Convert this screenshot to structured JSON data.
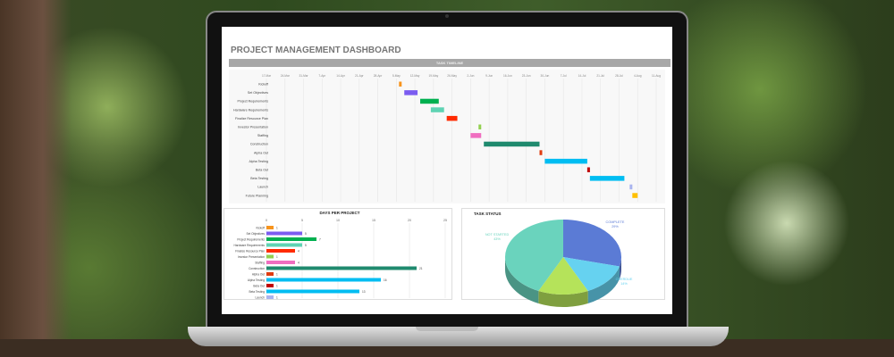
{
  "dashboard": {
    "title": "PROJECT MANAGEMENT DASHBOARD",
    "timeline_header": "TASK TIMELINE"
  },
  "chart_data": [
    {
      "type": "gantt",
      "title": "TASK TIMELINE",
      "x_ticks": [
        "17-Mar",
        "24-Mar",
        "31-Mar",
        "7-Apr",
        "14-Apr",
        "21-Apr",
        "28-Apr",
        "5-May",
        "12-May",
        "19-May",
        "26-May",
        "2-Jun",
        "9-Jun",
        "16-Jun",
        "23-Jun",
        "30-Jun",
        "7-Jul",
        "14-Jul",
        "21-Jul",
        "28-Jul",
        "4-Aug",
        "11-Aug"
      ],
      "tasks": [
        {
          "name": "Kickoff",
          "start": "6-May",
          "days": 1,
          "color": "#f7941d"
        },
        {
          "name": "Set Objectives",
          "start": "8-May",
          "days": 5,
          "color": "#7b5cf0"
        },
        {
          "name": "Project Requirements",
          "start": "14-May",
          "days": 7,
          "color": "#00b050"
        },
        {
          "name": "Hardware Requirements",
          "start": "18-May",
          "days": 5,
          "color": "#5fd3b3"
        },
        {
          "name": "Finalize Resource Plan",
          "start": "24-May",
          "days": 4,
          "color": "#ff2a00"
        },
        {
          "name": "Investor Presentation",
          "start": "5-Jun",
          "days": 1,
          "color": "#92d050"
        },
        {
          "name": "Staffing",
          "start": "2-Jun",
          "days": 4,
          "color": "#f06ec0"
        },
        {
          "name": "Construction",
          "start": "7-Jun",
          "days": 21,
          "color": "#1f8a6e"
        },
        {
          "name": "Alpha Out",
          "start": "28-Jun",
          "days": 1,
          "color": "#e03c10"
        },
        {
          "name": "Alpha Testing",
          "start": "30-Jun",
          "days": 16,
          "color": "#00bdf2"
        },
        {
          "name": "Beta Out",
          "start": "16-Jul",
          "days": 1,
          "color": "#c00000"
        },
        {
          "name": "Beta Testing",
          "start": "17-Jul",
          "days": 13,
          "color": "#00bdf2"
        },
        {
          "name": "Launch",
          "start": "1-Aug",
          "days": 1,
          "color": "#a9b4ee"
        },
        {
          "name": "Future Planning",
          "start": "2-Aug",
          "days": 2,
          "color": "#ffc000"
        }
      ]
    },
    {
      "type": "bar",
      "title": "DAYS PER PROJECT",
      "orientation": "horizontal",
      "xlim": [
        0,
        25
      ],
      "x_ticks": [
        0,
        5,
        10,
        15,
        20,
        25
      ],
      "categories": [
        "Kickoff",
        "Set Objectives",
        "Project Requirements",
        "Hardware Requirements",
        "Finalize Resource Plan",
        "Investor Presentation",
        "Staffing",
        "Construction",
        "Alpha Out",
        "Alpha Testing",
        "Beta Out",
        "Beta Testing",
        "Launch"
      ],
      "values": [
        1,
        5,
        7,
        5,
        4,
        1,
        4,
        21,
        1,
        16,
        1,
        13,
        1
      ],
      "colors": [
        "#f7941d",
        "#7b5cf0",
        "#00b050",
        "#5fd3b3",
        "#ff2a00",
        "#92d050",
        "#f06ec0",
        "#1f8a6e",
        "#e03c10",
        "#00bdf2",
        "#c00000",
        "#00bdf2",
        "#a9b4ee"
      ]
    },
    {
      "type": "pie",
      "title": "TASK STATUS",
      "style": "3d",
      "slices": [
        {
          "label": "COMPLETE",
          "value": 29,
          "color": "#5b7bd5"
        },
        {
          "label": "OVERDUE",
          "value": 14,
          "color": "#66d2f0"
        },
        {
          "label": "",
          "value": 14,
          "color": "#b5e35a"
        },
        {
          "label": "NOT STARTED",
          "value": 43,
          "color": "#6ad3bd"
        }
      ]
    }
  ]
}
